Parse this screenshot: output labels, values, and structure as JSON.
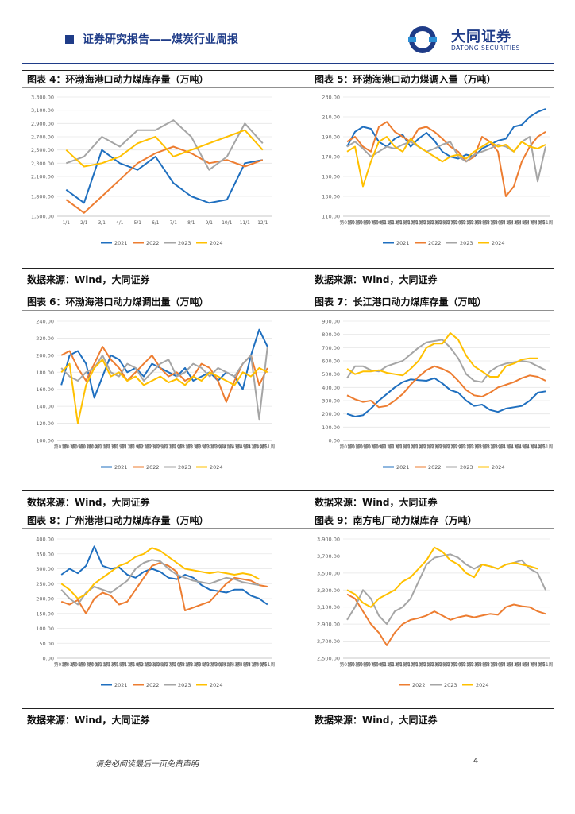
{
  "header": {
    "title": "证券研究报告——煤炭行业周报",
    "logo_cn": "大同证券",
    "logo_en": "DATONG SECURITIES"
  },
  "captions": {
    "c4": "图表 4：环渤海港口动力煤库存量（万吨）",
    "c5": "图表 5：环渤海港口动力煤调入量（万吨）",
    "c6": "图表 6：环渤海港口动力煤调出量（万吨）",
    "c7": "图表 7：长江港口动力煤库存量（万吨）",
    "c8": "图表 8：广州港港口动力煤库存量（万吨）",
    "c9": "图表 9：南方电厂动力煤库存（万吨）"
  },
  "source": "数据来源：Wind，大同证券",
  "footer": {
    "note": "请务必阅读最后一页免责声明",
    "page": "4"
  },
  "colors": {
    "2021": "#1f6fbf",
    "2022": "#ed7d31",
    "2023": "#a5a5a5",
    "2024": "#ffc000"
  },
  "chart_data": [
    {
      "id": "c4",
      "type": "line",
      "title": "环渤海港口动力煤库存量（万吨）",
      "ylim": [
        1500,
        3300
      ],
      "yticks": [
        1500,
        1800,
        2100,
        2300,
        2500,
        2700,
        2900,
        3100,
        3300
      ],
      "ytick_labels": [
        "1,500.00",
        "1,800.00",
        "2,100.00",
        "2,300.00",
        "2,500.00",
        "2,700.00",
        "2,900.00",
        "3,100.00",
        "3,300.00"
      ],
      "xcats": [
        "1/1",
        "2/1",
        "3/1",
        "4/1",
        "5/1",
        "6/1",
        "7/1",
        "8/1",
        "9/1",
        "10/1",
        "11/1",
        "12/1"
      ],
      "xlabel_every": 1,
      "n": 12,
      "series": [
        {
          "name": "2021",
          "values": [
            1900,
            1700,
            2500,
            2300,
            2200,
            2400,
            2000,
            1800,
            1700,
            1750,
            2300,
            2350
          ]
        },
        {
          "name": "2022",
          "values": [
            1750,
            1550,
            1800,
            2050,
            2300,
            2450,
            2550,
            2450,
            2300,
            2350,
            2250,
            2350
          ]
        },
        {
          "name": "2023",
          "values": [
            2300,
            2400,
            2700,
            2550,
            2800,
            2800,
            2950,
            2700,
            2200,
            2400,
            2900,
            2600
          ]
        },
        {
          "name": "2024",
          "values": [
            2500,
            2250,
            2300,
            2400,
            2600,
            2700,
            2400,
            2500,
            2600,
            2700,
            2800,
            2500
          ]
        }
      ],
      "legend": [
        "2021",
        "2022",
        "2023",
        "2024"
      ]
    },
    {
      "id": "c5",
      "type": "line",
      "title": "环渤海港口动力煤调入量（万吨）",
      "ylim": [
        110,
        230
      ],
      "yticks": [
        110,
        130,
        150,
        170,
        190,
        210,
        230
      ],
      "ytick_labels": [
        "110.00",
        "130.00",
        "150.00",
        "170.00",
        "190.00",
        "210.00",
        "230.00"
      ],
      "xcats": [
        "第01周",
        "第03周",
        "第05周",
        "第07周",
        "第09周",
        "第11周",
        "第13周",
        "第15周",
        "第17周",
        "第19周",
        "第21周",
        "第23周",
        "第25周",
        "第27周",
        "第29周",
        "第31周",
        "第33周",
        "第35周",
        "第37周",
        "第39周",
        "第41周",
        "第43周",
        "第45周",
        "第47周",
        "第49周",
        "第51周"
      ],
      "xlabel_every": 1,
      "n": 26,
      "series": [
        {
          "name": "2021",
          "values": [
            180,
            195,
            200,
            198,
            185,
            180,
            188,
            192,
            180,
            188,
            194,
            186,
            175,
            170,
            168,
            172,
            170,
            178,
            182,
            186,
            188,
            200,
            202,
            210,
            215,
            218
          ]
        },
        {
          "name": "2022",
          "values": [
            185,
            190,
            180,
            175,
            200,
            205,
            195,
            190,
            185,
            198,
            200,
            195,
            188,
            180,
            175,
            165,
            170,
            190,
            185,
            175,
            130,
            140,
            165,
            180,
            190,
            195
          ]
        },
        {
          "name": "2023",
          "values": [
            180,
            185,
            178,
            170,
            175,
            180,
            178,
            182,
            185,
            180,
            175,
            178,
            182,
            185,
            170,
            165,
            172,
            175,
            178,
            182,
            180,
            175,
            185,
            190,
            145,
            180
          ]
        },
        {
          "name": "2024",
          "values": [
            175,
            180,
            140,
            165,
            185,
            190,
            180,
            175,
            188,
            180,
            175,
            170,
            165,
            170,
            172,
            168,
            175,
            180,
            185,
            180,
            182,
            175,
            185,
            180,
            178,
            182
          ]
        }
      ],
      "legend": [
        "2021",
        "2022",
        "2023",
        "2024"
      ]
    },
    {
      "id": "c6",
      "type": "line",
      "title": "环渤海港口动力煤调出量（万吨）",
      "ylim": [
        100,
        240
      ],
      "yticks": [
        100,
        120,
        140,
        160,
        180,
        200,
        220,
        240
      ],
      "ytick_labels": [
        "100.00",
        "120.00",
        "140.00",
        "160.00",
        "180.00",
        "200.00",
        "220.00",
        "240.00"
      ],
      "xcats": [
        "第01周",
        "第03周",
        "第05周",
        "第07周",
        "第09周",
        "第11周",
        "第13周",
        "第15周",
        "第17周",
        "第19周",
        "第21周",
        "第23周",
        "第25周",
        "第27周",
        "第29周",
        "第31周",
        "第33周",
        "第35周",
        "第37周",
        "第39周",
        "第41周",
        "第43周",
        "第45周",
        "第47周",
        "第49周",
        "第51周"
      ],
      "xlabel_every": 1,
      "n": 26,
      "series": [
        {
          "name": "2021",
          "values": [
            165,
            200,
            205,
            190,
            150,
            175,
            200,
            195,
            180,
            185,
            175,
            190,
            185,
            180,
            175,
            185,
            170,
            175,
            180,
            170,
            180,
            175,
            160,
            200,
            230,
            210
          ]
        },
        {
          "name": "2022",
          "values": [
            200,
            205,
            185,
            170,
            190,
            210,
            195,
            185,
            170,
            180,
            190,
            200,
            185,
            175,
            180,
            170,
            175,
            190,
            185,
            170,
            145,
            170,
            190,
            200,
            165,
            185
          ]
        },
        {
          "name": "2023",
          "values": [
            185,
            175,
            170,
            180,
            185,
            200,
            180,
            175,
            190,
            185,
            170,
            180,
            190,
            195,
            175,
            180,
            190,
            185,
            175,
            185,
            180,
            175,
            190,
            200,
            125,
            210
          ]
        },
        {
          "name": "2024",
          "values": [
            180,
            190,
            120,
            165,
            185,
            195,
            175,
            180,
            170,
            175,
            165,
            170,
            175,
            168,
            172,
            165,
            175,
            170,
            180,
            175,
            170,
            165,
            180,
            175,
            185,
            180
          ]
        }
      ],
      "legend": [
        "2021",
        "2022",
        "2023",
        "2024"
      ]
    },
    {
      "id": "c7",
      "type": "line",
      "title": "长江港口动力煤库存量（万吨）",
      "ylim": [
        0,
        900
      ],
      "yticks": [
        0,
        100,
        200,
        300,
        400,
        500,
        600,
        700,
        800,
        900
      ],
      "ytick_labels": [
        "0.00",
        "100.00",
        "200.00",
        "300.00",
        "400.00",
        "500.00",
        "600.00",
        "700.00",
        "800.00",
        "900.00"
      ],
      "xcats": [
        "第01周",
        "第03周",
        "第05周",
        "第07周",
        "第09周",
        "第11周",
        "第13周",
        "第15周",
        "第17周",
        "第19周",
        "第21周",
        "第23周",
        "第25周",
        "第27周",
        "第29周",
        "第31周",
        "第33周",
        "第35周",
        "第37周",
        "第39周",
        "第41周",
        "第43周",
        "第45周",
        "第47周",
        "第49周",
        "第51周"
      ],
      "xlabel_every": 1,
      "n": 26,
      "series": [
        {
          "name": "2021",
          "values": [
            200,
            180,
            190,
            240,
            300,
            350,
            400,
            440,
            460,
            455,
            450,
            470,
            430,
            380,
            360,
            300,
            260,
            270,
            230,
            215,
            240,
            250,
            260,
            300,
            360,
            370
          ]
        },
        {
          "name": "2022",
          "values": [
            340,
            310,
            290,
            300,
            250,
            260,
            300,
            350,
            420,
            480,
            530,
            560,
            540,
            510,
            450,
            380,
            340,
            330,
            360,
            400,
            420,
            440,
            470,
            490,
            480,
            450
          ]
        },
        {
          "name": "2023",
          "values": [
            470,
            560,
            560,
            530,
            520,
            560,
            580,
            600,
            650,
            700,
            740,
            750,
            760,
            700,
            620,
            500,
            450,
            440,
            520,
            560,
            580,
            590,
            600,
            590,
            560,
            530
          ]
        },
        {
          "name": "2024",
          "values": [
            540,
            500,
            520,
            520,
            530,
            510,
            500,
            490,
            540,
            600,
            700,
            730,
            730,
            810,
            760,
            640,
            560,
            520,
            480,
            480,
            560,
            580,
            610,
            620,
            620,
            null
          ]
        }
      ],
      "legend": [
        "2021",
        "2022",
        "2023",
        "2024"
      ]
    },
    {
      "id": "c8",
      "type": "line",
      "title": "广州港港口动力煤库存量（万吨）",
      "ylim": [
        0,
        400
      ],
      "yticks": [
        0,
        50,
        100,
        150,
        200,
        250,
        300,
        350,
        400
      ],
      "ytick_labels": [
        "0.00",
        "50.00",
        "100.00",
        "150.00",
        "200.00",
        "250.00",
        "300.00",
        "350.00",
        "400.00"
      ],
      "xcats": [
        "第01周",
        "第03周",
        "第05周",
        "第07周",
        "第09周",
        "第11周",
        "第13周",
        "第15周",
        "第17周",
        "第19周",
        "第21周",
        "第23周",
        "第25周",
        "第27周",
        "第29周",
        "第31周",
        "第33周",
        "第35周",
        "第37周",
        "第39周",
        "第41周",
        "第43周",
        "第45周",
        "第47周",
        "第49周",
        "第51周"
      ],
      "xlabel_every": 1,
      "n": 26,
      "series": [
        {
          "name": "2021",
          "values": [
            280,
            300,
            285,
            310,
            375,
            310,
            300,
            305,
            280,
            270,
            290,
            300,
            290,
            270,
            265,
            280,
            270,
            245,
            230,
            225,
            220,
            230,
            230,
            210,
            200,
            180
          ]
        },
        {
          "name": "2022",
          "values": [
            190,
            180,
            195,
            150,
            200,
            220,
            210,
            180,
            190,
            230,
            270,
            310,
            320,
            310,
            290,
            160,
            170,
            180,
            190,
            220,
            250,
            270,
            265,
            260,
            245,
            240
          ]
        },
        {
          "name": "2023",
          "values": [
            230,
            200,
            180,
            220,
            240,
            230,
            220,
            240,
            260,
            300,
            320,
            330,
            325,
            300,
            280,
            270,
            260,
            255,
            250,
            260,
            270,
            265,
            255,
            250,
            245,
            null
          ]
        },
        {
          "name": "2024",
          "values": [
            250,
            230,
            200,
            215,
            250,
            270,
            290,
            310,
            320,
            340,
            350,
            370,
            360,
            340,
            320,
            300,
            295,
            290,
            285,
            290,
            285,
            280,
            285,
            280,
            265,
            null
          ]
        }
      ],
      "legend": [
        "2021",
        "2022",
        "2023",
        "2024"
      ]
    },
    {
      "id": "c9",
      "type": "line",
      "title": "南方电厂动力煤库存（万吨）",
      "ylim": [
        2500,
        3900
      ],
      "yticks": [
        2500,
        2700,
        2900,
        3100,
        3300,
        3500,
        3700,
        3900
      ],
      "ytick_labels": [
        "2,500.00",
        "2,700.00",
        "2,900.00",
        "3,100.00",
        "3,300.00",
        "3,500.00",
        "3,700.00",
        "3,900.00"
      ],
      "xcats": [
        "第01周",
        "第03周",
        "第05周",
        "第07周",
        "第09周",
        "第11周",
        "第13周",
        "第15周",
        "第17周",
        "第19周",
        "第21周",
        "第23周",
        "第25周",
        "第27周",
        "第29周",
        "第31周",
        "第33周",
        "第35周",
        "第37周",
        "第39周",
        "第41周",
        "第43周",
        "第45周",
        "第47周",
        "第49周",
        "第51周"
      ],
      "xlabel_every": 1,
      "n": 26,
      "series": [
        {
          "name": "2022",
          "values": [
            3250,
            3200,
            3050,
            2900,
            2800,
            2650,
            2800,
            2900,
            2950,
            2970,
            3000,
            3050,
            3000,
            2950,
            2980,
            3000,
            2980,
            3000,
            3020,
            3010,
            3100,
            3130,
            3110,
            3100,
            3050,
            3020
          ]
        },
        {
          "name": "2023",
          "values": [
            2950,
            3100,
            3300,
            3200,
            3000,
            2900,
            3050,
            3100,
            3200,
            3400,
            3600,
            3680,
            3700,
            3720,
            3680,
            3600,
            3550,
            3600,
            3580,
            3550,
            3600,
            3620,
            3650,
            3550,
            3500,
            3300
          ]
        },
        {
          "name": "2024",
          "values": [
            3300,
            3250,
            3150,
            3100,
            3200,
            3250,
            3300,
            3400,
            3450,
            3550,
            3650,
            3800,
            3750,
            3650,
            3600,
            3500,
            3450,
            3600,
            3580,
            3550,
            3600,
            3620,
            3600,
            3580,
            3550,
            null
          ]
        }
      ],
      "legend": [
        "2022",
        "2023",
        "2024"
      ]
    }
  ]
}
